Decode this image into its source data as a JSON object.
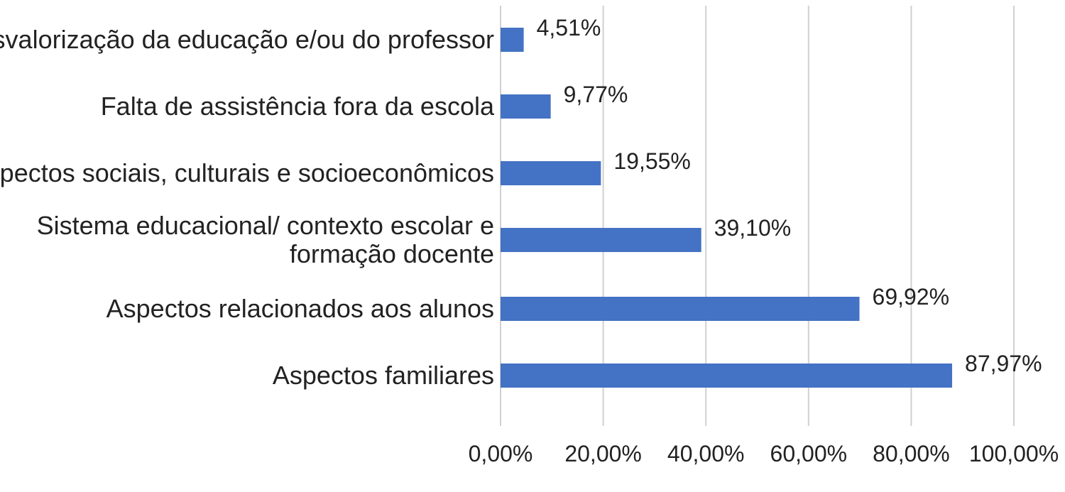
{
  "chart_data": {
    "type": "bar",
    "orientation": "horizontal",
    "categories": [
      [
        "Desvalorização da educação e/ou do professor"
      ],
      [
        "Falta de assistência fora da escola"
      ],
      [
        "Aspectos sociais, culturais e socioeconômicos"
      ],
      [
        "Sistema educacional/ contexto escolar e",
        "formação docente"
      ],
      [
        "Aspectos relacionados aos alunos"
      ],
      [
        "Aspectos familiares"
      ]
    ],
    "values": [
      4.51,
      9.77,
      19.55,
      39.1,
      69.92,
      87.97
    ],
    "value_labels": [
      "4,51%",
      "9,77%",
      "19,55%",
      "39,10%",
      "69,92%",
      "87,97%"
    ],
    "xlim": [
      0,
      100
    ],
    "xticks": [
      0,
      20,
      40,
      60,
      80,
      100
    ],
    "xtick_labels": [
      "0,00%",
      "20,00%",
      "40,00%",
      "60,00%",
      "80,00%",
      "100,00%"
    ],
    "grid": true,
    "bar_color": "#4472c4"
  }
}
